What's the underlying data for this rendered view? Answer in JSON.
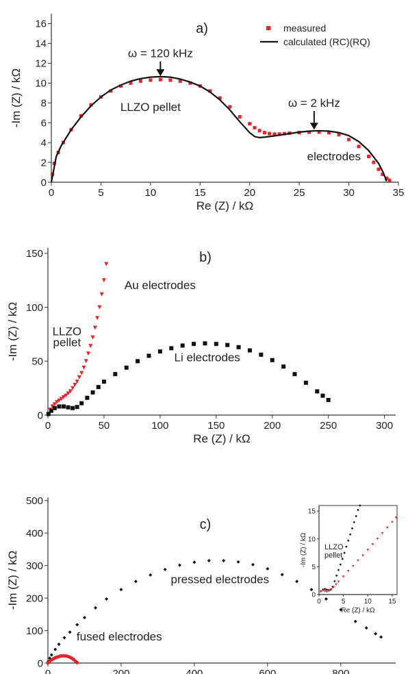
{
  "colors": {
    "measured": "#e8232a",
    "calculated": "#111111",
    "black_markers": "#111111",
    "axis": "#333333"
  },
  "chart_data": [
    {
      "panel": "a)",
      "type": "scatter",
      "xlabel": "Re (Z) / kΩ",
      "ylabel": "-Im (Z) / kΩ",
      "xlim": [
        0,
        35
      ],
      "ylim": [
        0,
        17
      ],
      "xticks": [
        0,
        5,
        10,
        15,
        20,
        25,
        30,
        35
      ],
      "yticks": [
        0,
        2,
        4,
        6,
        8,
        10,
        12,
        14,
        16
      ],
      "legend_position": "top-right",
      "series": [
        {
          "name": "measured",
          "marker": "square",
          "color": "#e8232a",
          "x": [
            0.1,
            0.3,
            0.7,
            1.2,
            2,
            3,
            4,
            5,
            6,
            7,
            8,
            9,
            10,
            11,
            12,
            13,
            14,
            15,
            16,
            17,
            18,
            19,
            20,
            20.5,
            21,
            21.5,
            22,
            22.5,
            23,
            23.5,
            24,
            25,
            26,
            27,
            28,
            29,
            30,
            31,
            32,
            32.5,
            33,
            33.4,
            33.8,
            34.1
          ],
          "y": [
            0.8,
            1.9,
            3.0,
            4.0,
            5.3,
            6.7,
            7.8,
            8.6,
            9.2,
            9.7,
            10.0,
            10.2,
            10.3,
            10.35,
            10.3,
            10.2,
            10.0,
            9.7,
            9.2,
            8.5,
            7.6,
            6.6,
            5.9,
            5.5,
            5.2,
            5.0,
            4.9,
            4.85,
            4.85,
            4.9,
            4.95,
            5.0,
            5.05,
            5.05,
            5.0,
            4.8,
            4.3,
            3.6,
            2.6,
            2.0,
            1.3,
            0.8,
            0.4,
            0.2
          ]
        },
        {
          "name": "calculated (RC)(RQ)",
          "line": true,
          "color": "#111111",
          "x": [
            0,
            0.5,
            1,
            2,
            3,
            4,
            5,
            6,
            7,
            8,
            9,
            10,
            11,
            12,
            13,
            14,
            15,
            16,
            17,
            18,
            19,
            20,
            20.5,
            21,
            21.5,
            22,
            23,
            24,
            25,
            26,
            27,
            28,
            29,
            30,
            31,
            32,
            33,
            33.5,
            33.8
          ],
          "y": [
            0,
            2.6,
            3.7,
            5.3,
            6.6,
            7.7,
            8.6,
            9.3,
            9.8,
            10.2,
            10.45,
            10.6,
            10.65,
            10.6,
            10.4,
            10.1,
            9.7,
            9.1,
            8.3,
            7.3,
            6.1,
            5.0,
            4.6,
            4.5,
            4.55,
            4.6,
            4.75,
            4.9,
            5.05,
            5.15,
            5.2,
            5.15,
            5.0,
            4.7,
            4.1,
            3.2,
            1.9,
            0.9,
            0.1
          ]
        }
      ],
      "annotations": [
        {
          "text": "ω = 120 kHz",
          "x": 11,
          "y": 12.6,
          "arrow_to": [
            11,
            10.7
          ]
        },
        {
          "text": "ω = 2 kHz",
          "x": 26.5,
          "y": 7.6,
          "arrow_to": [
            26.5,
            5.3
          ]
        },
        {
          "text": "LLZO pellet",
          "x": 10,
          "y": 7.2
        },
        {
          "text": "electrodes",
          "x": 28.5,
          "y": 2.2
        }
      ]
    },
    {
      "panel": "b)",
      "type": "scatter",
      "xlabel": "Re (Z) / kΩ",
      "ylabel": "-Im (Z) / kΩ",
      "xlim": [
        0,
        310
      ],
      "ylim": [
        0,
        155
      ],
      "xticks": [
        0,
        50,
        100,
        150,
        200,
        250,
        300
      ],
      "yticks": [
        0,
        50,
        100,
        150
      ],
      "series": [
        {
          "name": "Au electrodes",
          "marker": "triangle-down",
          "color": "#e8232a",
          "x": [
            0.5,
            2,
            4,
            6,
            8,
            10,
            12,
            14,
            16,
            18,
            20,
            22,
            24,
            26,
            28,
            30,
            32,
            34,
            36,
            38,
            40,
            42,
            44,
            46,
            48,
            50,
            52
          ],
          "y": [
            1,
            5,
            8,
            10,
            12,
            13.5,
            15,
            16.5,
            18,
            20,
            22,
            25,
            28,
            31,
            35,
            39,
            44,
            50,
            57,
            64,
            72,
            81,
            90,
            100,
            112,
            125,
            140
          ]
        },
        {
          "name": "Li electrodes",
          "marker": "square",
          "color": "#111111",
          "x": [
            0.5,
            3,
            6,
            10,
            14,
            18,
            22,
            26,
            30,
            35,
            40,
            45,
            50,
            60,
            70,
            80,
            90,
            100,
            110,
            120,
            130,
            140,
            150,
            160,
            170,
            180,
            190,
            200,
            210,
            220,
            230,
            240,
            245,
            250
          ],
          "y": [
            1,
            4,
            6.5,
            8,
            8,
            7.2,
            6.5,
            7.5,
            11,
            16,
            21,
            26,
            31,
            38,
            44,
            50,
            55,
            59,
            62,
            64.5,
            66,
            66.5,
            66,
            65,
            63,
            60,
            56,
            51,
            45,
            38,
            30,
            22,
            18,
            14
          ]
        }
      ],
      "annotations": [
        {
          "text": "Au electrodes",
          "x": 100,
          "y": 117
        },
        {
          "text": "LLZO",
          "x": 17,
          "y": 74
        },
        {
          "text": "pellet",
          "x": 17,
          "y": 64
        },
        {
          "text": "Li electrodes",
          "x": 142,
          "y": 50
        }
      ]
    },
    {
      "panel": "c)",
      "type": "scatter",
      "xlabel": "Re (Z) / kΩ",
      "ylabel": "-Im (Z) / kΩ",
      "xlim": [
        0,
        950
      ],
      "ylim": [
        0,
        510
      ],
      "xticks": [
        0,
        200,
        400,
        600,
        800
      ],
      "yticks": [
        0,
        100,
        200,
        300,
        400,
        500
      ],
      "series": [
        {
          "name": "pressed electrodes",
          "marker": "diamond",
          "color": "#111111",
          "x": [
            1,
            5,
            10,
            20,
            30,
            45,
            60,
            80,
            100,
            130,
            160,
            200,
            240,
            280,
            320,
            360,
            400,
            440,
            480,
            520,
            560,
            600,
            640,
            680,
            720,
            760,
            800,
            840,
            870,
            895,
            910
          ],
          "y": [
            5,
            15,
            25,
            42,
            58,
            78,
            95,
            118,
            140,
            170,
            197,
            226,
            251,
            271,
            288,
            301,
            310,
            315,
            315,
            311,
            303,
            290,
            272,
            251,
            226,
            197,
            164,
            128,
            108,
            90,
            80
          ]
        },
        {
          "name": "fused electrodes",
          "marker": "circle",
          "color": "#e8232a",
          "x": [
            0,
            5,
            10,
            15,
            20,
            25,
            30,
            35,
            40,
            45,
            50,
            55,
            60,
            65,
            70,
            75,
            80
          ],
          "y": [
            0,
            6,
            10,
            13,
            16,
            18,
            20,
            21.5,
            22,
            22,
            21.5,
            20,
            18,
            15,
            11,
            6,
            1
          ]
        }
      ],
      "annotations": [
        {
          "text": "pressed electrodes",
          "x": 470,
          "y": 245
        },
        {
          "text": "fused electrodes",
          "x": 195,
          "y": 70
        }
      ],
      "inset": {
        "xlabel": "Re (Z) / kΩ",
        "ylabel": "-Im (Z) / kΩ",
        "xlim": [
          0,
          16
        ],
        "ylim": [
          0,
          16
        ],
        "xticks": [
          0,
          5,
          10,
          15
        ],
        "yticks": [
          0,
          5,
          10,
          15
        ],
        "annotation_lines": [
          "LLZO",
          "pellet"
        ],
        "series": [
          {
            "name": "pressed",
            "marker": "diamond",
            "color": "#111111",
            "x": [
              0.4,
              0.8,
              1.2,
              1.6,
              2.0,
              2.4,
              2.8,
              3.2,
              3.6,
              4.0,
              4.4,
              4.8,
              5.2,
              5.6,
              6.0,
              6.4,
              6.8,
              7.2,
              7.6,
              8.0,
              8.4
            ],
            "y": [
              0.6,
              0.9,
              1.0,
              0.9,
              0.8,
              0.9,
              1.4,
              2.4,
              3.4,
              4.4,
              5.4,
              6.4,
              7.5,
              8.6,
              9.7,
              10.8,
              11.9,
              13.0,
              14.1,
              15.2,
              16.0
            ]
          },
          {
            "name": "fused",
            "marker": "triangle-down",
            "color": "#e8232a",
            "x": [
              0.4,
              0.8,
              1.2,
              1.6,
              2.0,
              2.5,
              3,
              3.5,
              4,
              5,
              6,
              7,
              8,
              9,
              10,
              11,
              12,
              13,
              14,
              15,
              15.8
            ],
            "y": [
              0.5,
              0.7,
              0.6,
              0.5,
              0.6,
              0.9,
              1.3,
              1.8,
              2.3,
              3.2,
              4.2,
              5.1,
              6.1,
              7.0,
              8.0,
              9.0,
              10.0,
              11.0,
              12.0,
              13.0,
              13.8
            ]
          }
        ]
      }
    }
  ]
}
